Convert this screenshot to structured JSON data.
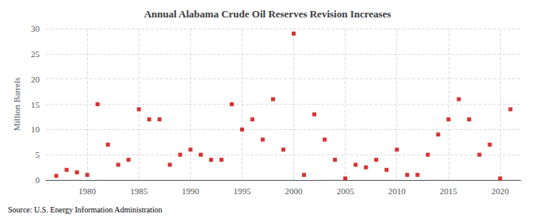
{
  "chart_data": {
    "type": "scatter",
    "title": "Annual Alabama Crude Oil Reserves Revision Increases",
    "ylabel": "Million Barrels",
    "source": "Source: U.S. Energy Information Administration",
    "x": [
      1977,
      1978,
      1979,
      1980,
      1981,
      1982,
      1983,
      1984,
      1985,
      1986,
      1987,
      1988,
      1989,
      1990,
      1991,
      1992,
      1993,
      1994,
      1995,
      1996,
      1997,
      1998,
      1999,
      2000,
      2001,
      2002,
      2003,
      2004,
      2005,
      2006,
      2007,
      2008,
      2009,
      2010,
      2011,
      2012,
      2013,
      2014,
      2015,
      2016,
      2017,
      2018,
      2019,
      2020,
      2021
    ],
    "values": [
      0.8,
      2.0,
      1.5,
      1.0,
      15.0,
      7.0,
      3.0,
      4.0,
      14.0,
      12.0,
      12.0,
      3.0,
      5.0,
      6.0,
      5.0,
      4.0,
      4.0,
      15.0,
      10.0,
      12.0,
      8.0,
      16.0,
      6.0,
      29.0,
      1.0,
      13.0,
      8.0,
      4.0,
      0.3,
      3.0,
      2.5,
      4.0,
      2.0,
      6.0,
      1.0,
      1.0,
      5.0,
      9.0,
      12.0,
      16.0,
      12.0,
      5.0,
      7.0,
      0.3,
      14.0
    ],
    "color": "#cc0000",
    "marker": "square",
    "xlim": [
      1976,
      2022
    ],
    "ylim": [
      0,
      30
    ],
    "xticks": [
      1980,
      1985,
      1990,
      1995,
      2000,
      2005,
      2010,
      2015,
      2020
    ],
    "yticks": [
      0,
      5,
      10,
      15,
      20,
      25,
      30
    ],
    "grid": true
  }
}
